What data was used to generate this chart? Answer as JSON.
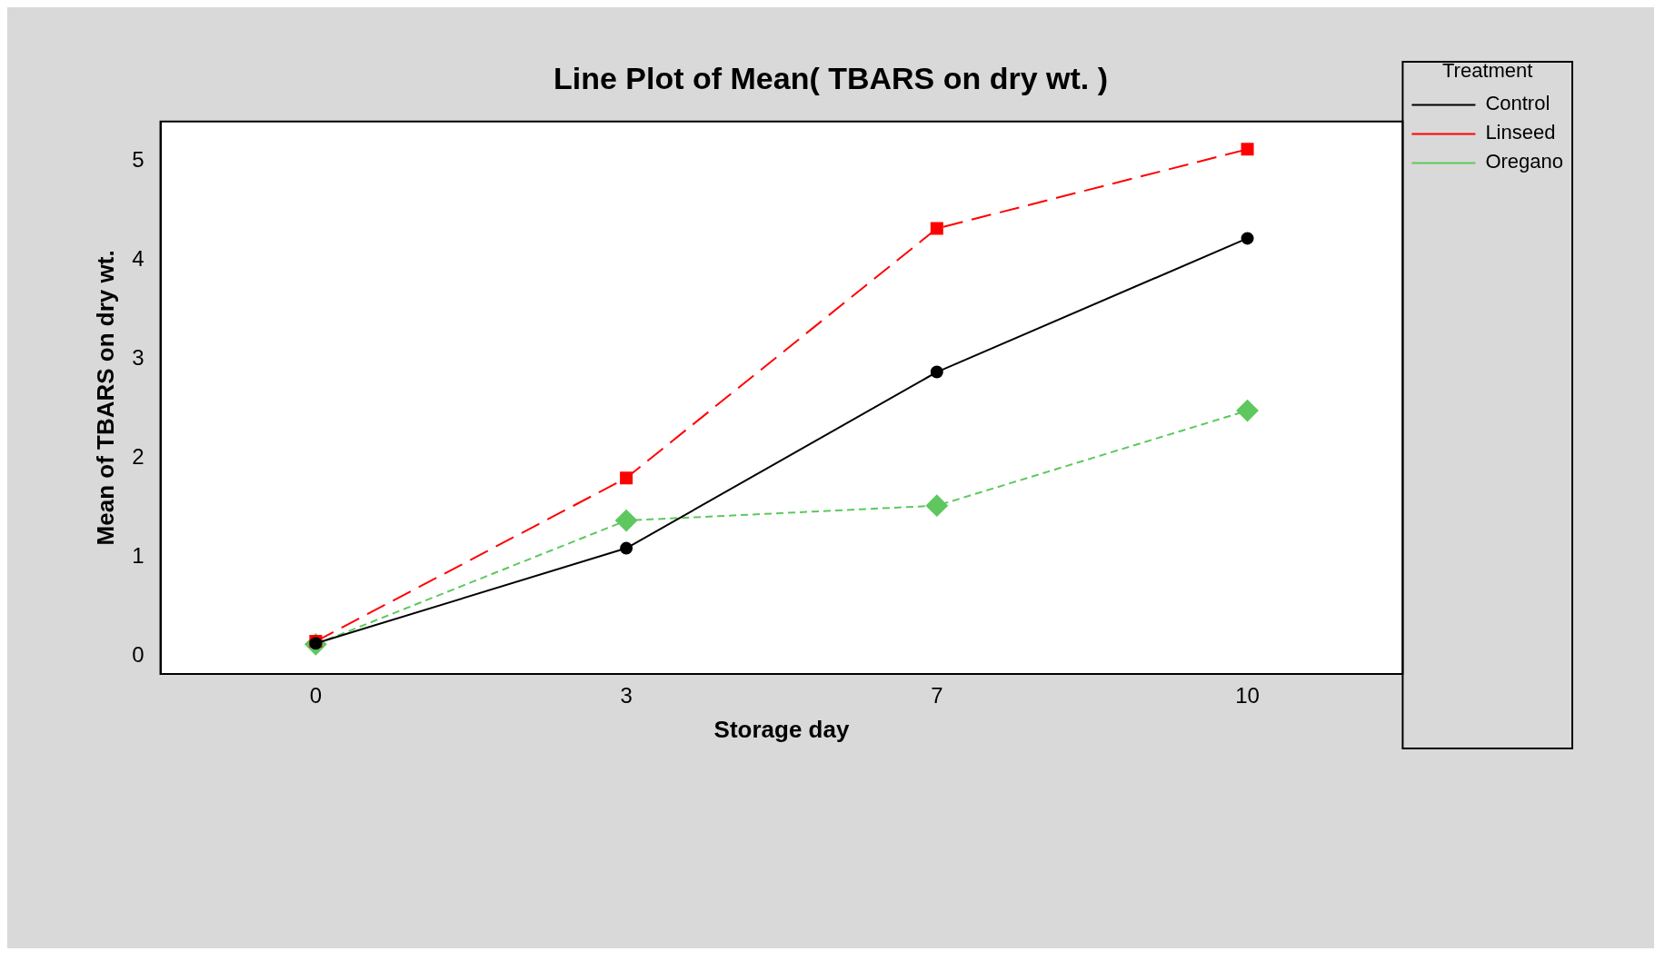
{
  "chart_data": {
    "type": "line",
    "title": "Line Plot of Mean( TBARS on dry wt. )",
    "xlabel": "Storage day",
    "ylabel": "Mean of TBARS on dry wt.",
    "legend_title": "Treatment",
    "categories": [
      "0",
      "3",
      "7",
      "10"
    ],
    "series": [
      {
        "name": "Control",
        "color": "#000000",
        "values": [
          0.13,
          1.09,
          2.87,
          4.22
        ],
        "marker": "circle",
        "line_style": "solid"
      },
      {
        "name": "Linseed",
        "color": "#ff0000",
        "values": [
          0.15,
          1.8,
          4.32,
          5.12
        ],
        "marker": "square",
        "line_style": "dashed"
      },
      {
        "name": "Oregano",
        "color": "#5ec85e",
        "values": [
          0.12,
          1.37,
          1.52,
          2.48
        ],
        "marker": "diamond",
        "line_style": "dotted"
      }
    ],
    "ylim": [
      -0.18,
      5.4
    ],
    "yticks": [
      0,
      1,
      2,
      3,
      4,
      5
    ],
    "grid": false,
    "legend": "top right"
  }
}
